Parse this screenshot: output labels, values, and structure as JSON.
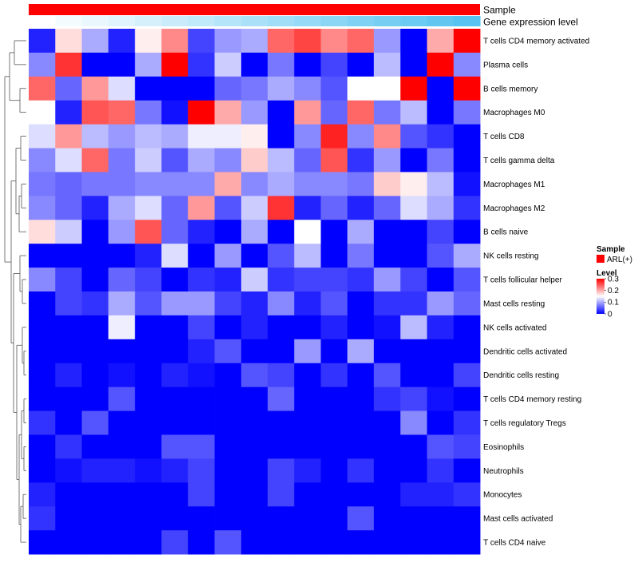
{
  "chart_data": {
    "type": "heatmap",
    "title": "",
    "annotation_rows": [
      "Sample",
      "Gene expression level"
    ],
    "sample_annotation": {
      "value": "ARL(+)",
      "color": "#FF0000"
    },
    "expression_annotation": {
      "low_color": "#FFFFFF",
      "high_color": "#56C3F0"
    },
    "rows": [
      "T cells CD4 memory activated",
      "Plasma cells",
      "B cells memory",
      "Macrophages M0",
      "T cells CD8",
      "T cells gamma delta",
      "Macrophages M1",
      "Macrophages M2",
      "B cells naive",
      "NK cells resting",
      "T cells follicular helper",
      "Mast cells resting",
      "NK cells activated",
      "Dendritic cells activated",
      "Dendritic cells resting",
      "T cells CD4 memory resting",
      "T cells regulatory  Tregs",
      "Eosinophils",
      "Neutrophils",
      "Monocytes",
      "Mast cells activated",
      "T cells CD4 naive"
    ],
    "n_columns": 17,
    "values": [
      [
        0.02,
        0.17,
        0.1,
        0.02,
        0.16,
        0.22,
        0.04,
        0.09,
        0.1,
        0.24,
        0.26,
        0.22,
        0.24,
        0.09,
        0.0,
        0.2,
        0.3
      ],
      [
        0.08,
        0.27,
        0.0,
        0.0,
        0.1,
        0.3,
        0.03,
        0.12,
        0.0,
        0.07,
        0.0,
        0.04,
        0.0,
        0.11,
        0.0,
        0.3,
        0.08
      ],
      [
        0.24,
        0.06,
        0.21,
        0.13,
        0.0,
        0.0,
        0.0,
        0.06,
        0.07,
        0.1,
        0.08,
        0.05,
        0.15,
        0.15,
        0.3,
        0.0,
        0.3
      ],
      [
        0.15,
        0.02,
        0.25,
        0.24,
        0.07,
        0.01,
        0.3,
        0.2,
        0.09,
        0.0,
        0.21,
        0.06,
        0.24,
        0.07,
        0.11,
        0.0,
        0.07
      ],
      [
        0.13,
        0.21,
        0.11,
        0.09,
        0.11,
        0.1,
        0.14,
        0.14,
        0.16,
        0.0,
        0.08,
        0.28,
        0.08,
        0.22,
        0.05,
        0.03,
        0.0
      ],
      [
        0.08,
        0.13,
        0.24,
        0.07,
        0.12,
        0.05,
        0.1,
        0.08,
        0.18,
        0.11,
        0.06,
        0.25,
        0.03,
        0.09,
        0.0,
        0.07,
        0.0
      ],
      [
        0.07,
        0.06,
        0.07,
        0.07,
        0.08,
        0.08,
        0.08,
        0.2,
        0.08,
        0.1,
        0.08,
        0.08,
        0.07,
        0.18,
        0.16,
        0.11,
        0.01
      ],
      [
        0.08,
        0.06,
        0.02,
        0.1,
        0.13,
        0.06,
        0.21,
        0.05,
        0.12,
        0.27,
        0.02,
        0.06,
        0.02,
        0.06,
        0.13,
        0.1,
        0.03
      ],
      [
        0.17,
        0.12,
        0.0,
        0.09,
        0.25,
        0.06,
        0.02,
        0.0,
        0.1,
        0.0,
        0.15,
        0.0,
        0.1,
        0.0,
        0.0,
        0.04,
        0.0
      ],
      [
        0.0,
        0.0,
        0.0,
        0.0,
        0.02,
        0.13,
        0.0,
        0.09,
        0.0,
        0.05,
        0.11,
        0.0,
        0.07,
        0.0,
        0.0,
        0.05,
        0.1
      ],
      [
        0.08,
        0.04,
        0.0,
        0.06,
        0.04,
        0.0,
        0.03,
        0.02,
        0.12,
        0.03,
        0.04,
        0.04,
        0.03,
        0.09,
        0.04,
        0.0,
        0.05
      ],
      [
        0.0,
        0.04,
        0.03,
        0.1,
        0.05,
        0.09,
        0.09,
        0.04,
        0.02,
        0.08,
        0.02,
        0.05,
        0.0,
        0.03,
        0.03,
        0.09,
        0.06
      ],
      [
        0.0,
        0.0,
        0.0,
        0.14,
        0.0,
        0.0,
        0.04,
        0.0,
        0.02,
        0.0,
        0.0,
        0.02,
        0.0,
        0.01,
        0.11,
        0.02,
        0.0
      ],
      [
        0.0,
        0.0,
        0.0,
        0.0,
        0.0,
        0.0,
        0.02,
        0.05,
        0.0,
        0.0,
        0.09,
        0.0,
        0.1,
        0.0,
        0.0,
        0.0,
        0.0
      ],
      [
        0.0,
        0.02,
        0.0,
        0.01,
        0.0,
        0.02,
        0.01,
        0.0,
        0.05,
        0.04,
        0.0,
        0.03,
        0.0,
        0.05,
        0.0,
        0.0,
        0.04
      ],
      [
        0.0,
        0.0,
        0.0,
        0.05,
        0.0,
        0.0,
        0.0,
        0.0,
        0.0,
        0.06,
        0.0,
        0.0,
        0.0,
        0.03,
        0.04,
        0.01,
        0.0
      ],
      [
        0.03,
        0.0,
        0.05,
        0.0,
        0.0,
        0.0,
        0.0,
        0.0,
        0.0,
        0.0,
        0.0,
        0.0,
        0.0,
        0.0,
        0.08,
        0.0,
        0.03
      ],
      [
        0.0,
        0.03,
        0.0,
        0.0,
        0.0,
        0.05,
        0.05,
        0.0,
        0.0,
        0.0,
        0.0,
        0.0,
        0.0,
        0.0,
        0.0,
        0.05,
        0.04
      ],
      [
        0.0,
        0.01,
        0.02,
        0.02,
        0.01,
        0.02,
        0.04,
        0.0,
        0.0,
        0.04,
        0.02,
        0.0,
        0.03,
        0.0,
        0.0,
        0.03,
        0.0
      ],
      [
        0.02,
        0.0,
        0.0,
        0.0,
        0.0,
        0.0,
        0.04,
        0.0,
        0.0,
        0.04,
        0.0,
        0.0,
        0.0,
        0.0,
        0.02,
        0.02,
        0.03
      ],
      [
        0.03,
        0.0,
        0.0,
        0.0,
        0.0,
        0.0,
        0.0,
        0.0,
        0.0,
        0.0,
        0.0,
        0.0,
        0.05,
        0.0,
        0.0,
        0.0,
        0.0
      ],
      [
        0.0,
        0.0,
        0.0,
        0.0,
        0.0,
        0.04,
        0.0,
        0.05,
        0.0,
        0.0,
        0.0,
        0.0,
        0.0,
        0.0,
        0.0,
        0.0,
        0.0
      ]
    ],
    "color_scale": {
      "low": "#0000FF",
      "mid": "#FFFFFF",
      "high": "#FF0000",
      "min": 0,
      "mid_value": 0.15,
      "max": 0.3
    }
  },
  "legend": {
    "sample_title": "Sample",
    "sample_label": "ARL(+)",
    "level_title": "Level",
    "ticks": [
      {
        "label": "0.3",
        "value": 0.3
      },
      {
        "label": "0.2",
        "value": 0.2
      },
      {
        "label": "0.1",
        "value": 0.1
      },
      {
        "label": "0",
        "value": 0
      }
    ]
  }
}
